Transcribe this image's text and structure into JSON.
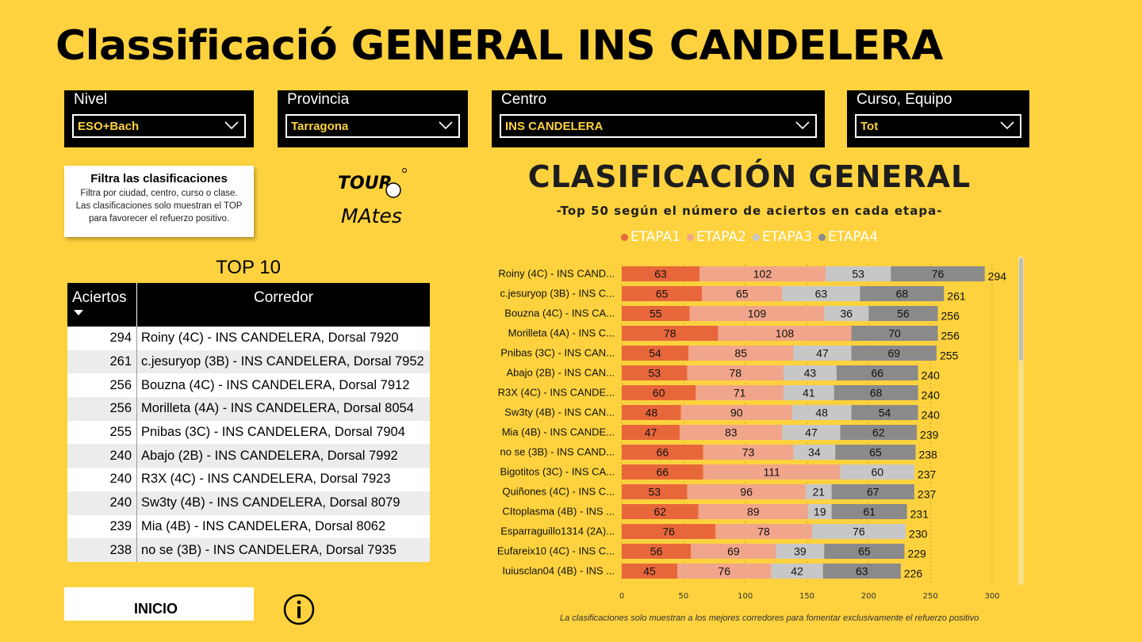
{
  "title": "Classificació GENERAL INS CANDELERA",
  "slicers": [
    {
      "label": "Nivel",
      "value": "ESO+Bach"
    },
    {
      "label": "Provincia",
      "value": "Tarragona"
    },
    {
      "label": "Centro",
      "value": "INS CANDELERA"
    },
    {
      "label": "Curso, Equipo",
      "value": "Tot"
    }
  ],
  "info": {
    "heading": "Filtra las clasificaciones",
    "line1": "Filtra por ciudad, centro, curso o clase.",
    "line2": "Las clasificaciones solo muestran el TOP",
    "line3": "para favorecer el refuerzo positivo."
  },
  "logo": {
    "line1": "TOUR",
    "line2": "MAtes"
  },
  "top10": {
    "title": "TOP 10",
    "col_aciertos": "Aciertos",
    "col_corredor": "Corredor",
    "rows": [
      {
        "aciertos": "294",
        "corredor": "Roiny (4C) - INS CANDELERA, Dorsal 7920"
      },
      {
        "aciertos": "261",
        "corredor": "c.jesuryop (3B) - INS CANDELERA, Dorsal 7952"
      },
      {
        "aciertos": "256",
        "corredor": "Bouzna (4C) - INS CANDELERA, Dorsal 7912"
      },
      {
        "aciertos": "256",
        "corredor": "Morilleta (4A) - INS CANDELERA, Dorsal 8054"
      },
      {
        "aciertos": "255",
        "corredor": "Pnibas (3C) - INS CANDELERA, Dorsal 7904"
      },
      {
        "aciertos": "240",
        "corredor": "Abajo (2B) - INS CANDELERA, Dorsal 7992"
      },
      {
        "aciertos": "240",
        "corredor": "R3X (4C) - INS CANDELERA, Dorsal 7923"
      },
      {
        "aciertos": "240",
        "corredor": "Sw3ty (4B) - INS CANDELERA, Dorsal 8079"
      },
      {
        "aciertos": "239",
        "corredor": "Mia (4B) - INS CANDELERA, Dorsal 8062"
      },
      {
        "aciertos": "238",
        "corredor": "no se (3B) - INS CANDELERA, Dorsal 7935"
      }
    ]
  },
  "inicio": {
    "label": "INICIO"
  },
  "chart_header": {
    "title": "CLASIFICACIÓN GENERAL",
    "subtitle": "-Top 50 según el número de aciertos en cada etapa-"
  },
  "footnote": "La clasificaciones solo muestran a los mejores corredores para fomentar exclusivamente el refuerzo positivo",
  "colors": {
    "background": "#fdd23e",
    "etapa1": "#e8673a",
    "etapa2": "#f1a58a",
    "etapa3": "#c7c7c7",
    "etapa4": "#8a8a8a"
  },
  "chart_data": {
    "type": "bar",
    "orientation": "horizontal",
    "stacked": true,
    "title": "CLASIFICACIÓN GENERAL",
    "subtitle": "-Top 50 según el número de aciertos en cada etapa-",
    "xlim": [
      0,
      300
    ],
    "xticks": [
      0,
      50,
      100,
      150,
      200,
      250,
      300
    ],
    "legend_position": "top",
    "categories": [
      "Roiny (4C) - INS CAND...",
      "c.jesuryop (3B) - INS C...",
      "Bouzna (4C) - INS CA...",
      "Morilleta (4A) - INS C...",
      "Pnibas (3C) - INS CAN...",
      "Abajo (2B) - INS CAN...",
      "R3X (4C) - INS CANDE...",
      "Sw3ty (4B) - INS CAN...",
      "Mia (4B) - INS CANDE...",
      "no se (3B) - INS CAND...",
      "Bigotitos (3C) - INS CA...",
      "Quiñones (4C) - INS C...",
      "CItoplasma (4B) - INS ...",
      "Esparraguillo1314 (2A)...",
      "Eufareix10 (4C) - INS C...",
      "Iuiusclan04 (4B) - INS ..."
    ],
    "series": [
      {
        "name": "ETAPA1",
        "values": [
          63,
          65,
          55,
          78,
          54,
          53,
          60,
          48,
          47,
          66,
          66,
          53,
          62,
          76,
          56,
          45
        ]
      },
      {
        "name": "ETAPA2",
        "values": [
          102,
          65,
          109,
          108,
          85,
          78,
          71,
          90,
          83,
          73,
          111,
          96,
          89,
          78,
          69,
          76
        ]
      },
      {
        "name": "ETAPA3",
        "values": [
          53,
          63,
          36,
          0,
          47,
          43,
          41,
          48,
          47,
          34,
          60,
          21,
          19,
          76,
          39,
          42
        ]
      },
      {
        "name": "ETAPA4",
        "values": [
          76,
          68,
          56,
          70,
          69,
          66,
          68,
          54,
          62,
          65,
          0,
          67,
          61,
          0,
          65,
          63
        ]
      }
    ],
    "totals": [
      294,
      261,
      256,
      256,
      255,
      240,
      240,
      240,
      239,
      238,
      237,
      237,
      231,
      230,
      229,
      226
    ]
  }
}
